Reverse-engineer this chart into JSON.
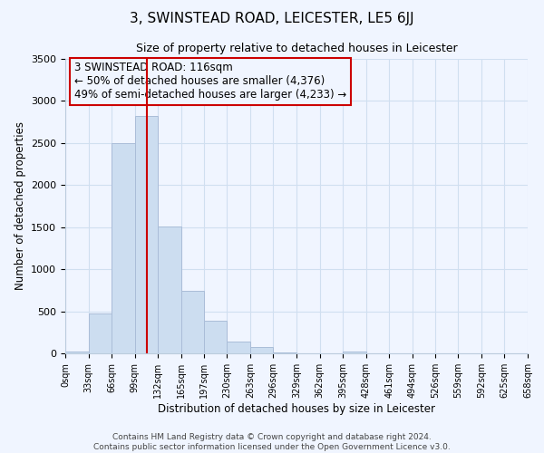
{
  "title": "3, SWINSTEAD ROAD, LEICESTER, LE5 6JJ",
  "subtitle": "Size of property relative to detached houses in Leicester",
  "xlabel": "Distribution of detached houses by size in Leicester",
  "ylabel": "Number of detached properties",
  "bar_color": "#ccddf0",
  "bar_edge_color": "#aabdd8",
  "grid_color": "#d0dff0",
  "background_color": "#f0f5ff",
  "annotation_box_color": "#cc0000",
  "vline_color": "#cc0000",
  "bin_edges": [
    0,
    33,
    66,
    99,
    132,
    165,
    197,
    230,
    263,
    296,
    329,
    362,
    395,
    428,
    461,
    494,
    526,
    559,
    592,
    625,
    658
  ],
  "bin_labels": [
    "0sqm",
    "33sqm",
    "66sqm",
    "99sqm",
    "132sqm",
    "165sqm",
    "197sqm",
    "230sqm",
    "263sqm",
    "296sqm",
    "329sqm",
    "362sqm",
    "395sqm",
    "428sqm",
    "461sqm",
    "494sqm",
    "526sqm",
    "559sqm",
    "592sqm",
    "625sqm",
    "658sqm"
  ],
  "bar_heights": [
    20,
    470,
    2500,
    2820,
    1510,
    740,
    390,
    145,
    80,
    10,
    0,
    0,
    20,
    0,
    0,
    0,
    0,
    0,
    0,
    0
  ],
  "vline_x": 116,
  "ylim": [
    0,
    3500
  ],
  "yticks": [
    0,
    500,
    1000,
    1500,
    2000,
    2500,
    3000,
    3500
  ],
  "annotation_text": "3 SWINSTEAD ROAD: 116sqm\n← 50% of detached houses are smaller (4,376)\n49% of semi-detached houses are larger (4,233) →",
  "footer_line1": "Contains HM Land Registry data © Crown copyright and database right 2024.",
  "footer_line2": "Contains public sector information licensed under the Open Government Licence v3.0."
}
